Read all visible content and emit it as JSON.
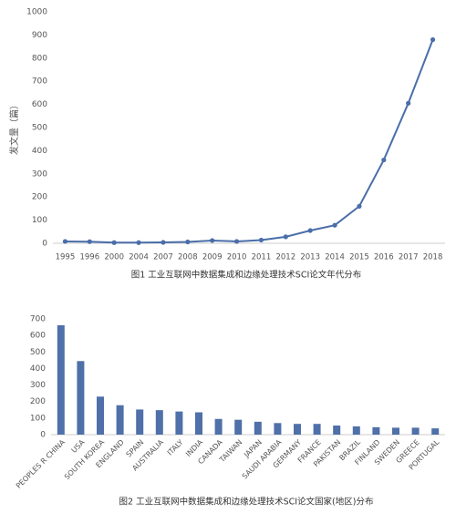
{
  "chart_data": [
    {
      "type": "line",
      "title": "图1 工业互联网中数据集成和边缘处理技术SCI论文年代分布",
      "y_label": "发文量（篇）",
      "categories": [
        "1995",
        "1996",
        "2000",
        "2004",
        "2007",
        "2008",
        "2009",
        "2010",
        "2011",
        "2012",
        "2013",
        "2014",
        "2015",
        "2016",
        "2017",
        "2018"
      ],
      "values": [
        8,
        7,
        3,
        3,
        4,
        6,
        12,
        8,
        14,
        28,
        55,
        78,
        160,
        360,
        605,
        880
      ],
      "color": "#4a6ea8",
      "ylim": [
        0,
        1000
      ],
      "yticks": [
        0,
        100,
        200,
        300,
        400,
        500,
        600,
        700,
        800,
        900,
        1000
      ],
      "grid": false
    },
    {
      "type": "bar",
      "title": "图2 工业互联网中数据集成和边缘处理技术SCI论文国家(地区)分布",
      "categories": [
        "PEOPLES R CHINA",
        "USA",
        "SOUTH KOREA",
        "ENGLAND",
        "SPAIN",
        "AUSTRALIA",
        "ITALY",
        "INDIA",
        "CANADA",
        "TAIWAN",
        "JAPAN",
        "SAUDI ARABIA",
        "GERMANY",
        "FRANCE",
        "PAKISTAN",
        "BRAZIL",
        "FINLAND",
        "SWEDEN",
        "GREECE",
        "PORTUGAL"
      ],
      "values": [
        662,
        445,
        230,
        178,
        152,
        148,
        140,
        135,
        95,
        90,
        78,
        70,
        65,
        65,
        55,
        50,
        45,
        42,
        42,
        38
      ],
      "color": "#4f70a8",
      "ylim": [
        0,
        700
      ],
      "yticks": [
        0,
        100,
        200,
        300,
        400,
        500,
        600,
        700
      ],
      "grid": false
    }
  ]
}
